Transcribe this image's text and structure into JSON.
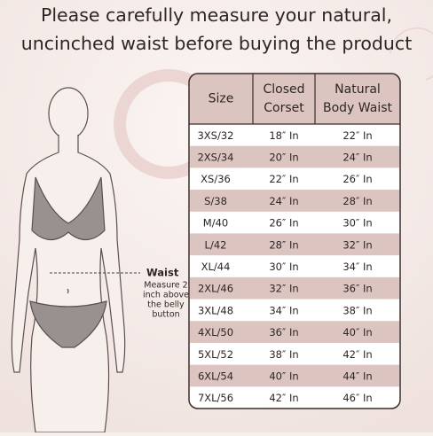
{
  "title": [
    "Please carefully measure your natural,",
    "uncinched waist before buying the product"
  ],
  "figure": {
    "label": "Waist",
    "note": [
      "Measure 2",
      "inch above",
      "the belly",
      "button"
    ]
  },
  "table": {
    "headers": [
      [
        "Size"
      ],
      [
        "Closed",
        "Corset"
      ],
      [
        "Natural",
        "Body Waist"
      ]
    ],
    "rows": [
      [
        "3XS/32",
        "18″ In",
        "22″ In"
      ],
      [
        "2XS/34",
        "20″ In",
        "24″ In"
      ],
      [
        "XS/36",
        "22″ In",
        "26″ In"
      ],
      [
        "S/38",
        "24″ In",
        "28″ In"
      ],
      [
        "M/40",
        "26″ In",
        "30″ In"
      ],
      [
        "L/42",
        "28″ In",
        "32″ In"
      ],
      [
        "XL/44",
        "30″ In",
        "34″ In"
      ],
      [
        "2XL/46",
        "32″ In",
        "36″ In"
      ],
      [
        "3XL/48",
        "34″ In",
        "38″ In"
      ],
      [
        "4XL/50",
        "36″ In",
        "40″ In"
      ],
      [
        "5XL/52",
        "38″ In",
        "42″ In"
      ],
      [
        "6XL/54",
        "40″ In",
        "44″ In"
      ],
      [
        "7XL/56",
        "42″ In",
        "46″ In"
      ]
    ]
  }
}
